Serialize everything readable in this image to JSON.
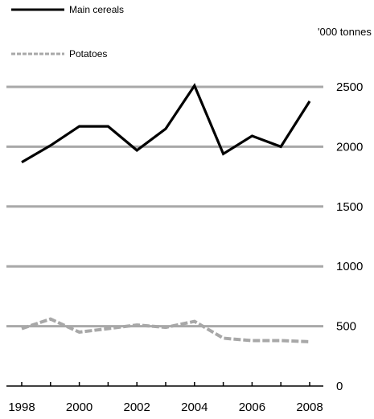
{
  "chart_data": {
    "type": "line",
    "title": "",
    "xlabel": "",
    "ylabel": "",
    "unit_label": "'000 tonnes",
    "xlim": [
      1998,
      2008
    ],
    "ylim": [
      0,
      2500
    ],
    "x_ticks": [
      1998,
      2000,
      2002,
      2004,
      2006,
      2008
    ],
    "x_tick_labels": [
      "1998",
      "2000",
      "2002",
      "2004",
      "2006",
      "2008"
    ],
    "y_ticks": [
      0,
      500,
      1000,
      1500,
      2000,
      2500
    ],
    "y_tick_labels": [
      "0",
      "500",
      "1000",
      "1500",
      "2000",
      "2500"
    ],
    "grid": true,
    "legend_position": "top-left",
    "x": [
      1998,
      1999,
      2000,
      2001,
      2002,
      2003,
      2004,
      2005,
      2006,
      2007,
      2008
    ],
    "series": [
      {
        "name": "Main cereals",
        "color": "#000000",
        "style": "solid",
        "x": [
          1998,
          1999,
          2000,
          2001,
          2002,
          2003,
          2004,
          2005,
          2006,
          2007,
          2008
        ],
        "values": [
          1870,
          2010,
          2170,
          2170,
          1970,
          2150,
          2510,
          1940,
          2090,
          2000,
          2380
        ]
      },
      {
        "name": "Potatoes",
        "color": "#a8a8a8",
        "style": "dashed",
        "x": [
          1998,
          1999,
          2000,
          2001,
          2002,
          2003,
          2004,
          2005,
          2006,
          2007,
          2008
        ],
        "values": [
          480,
          560,
          450,
          480,
          510,
          490,
          540,
          400,
          380,
          380,
          370
        ]
      }
    ],
    "grid_color": "#a8a8a8"
  }
}
